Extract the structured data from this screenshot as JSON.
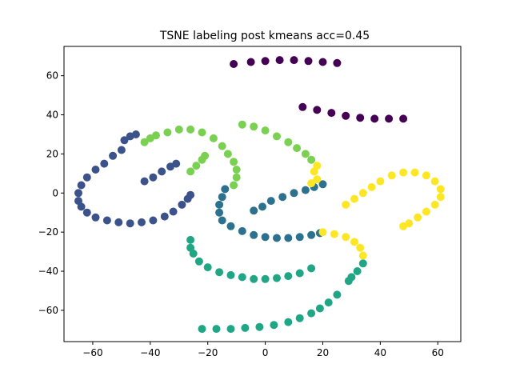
{
  "chart_data": {
    "type": "scatter",
    "title": "TSNE labeling post kmeans acc=0.45",
    "xlabel": "",
    "ylabel": "",
    "xlim": [
      -70,
      68
    ],
    "ylim": [
      -76,
      75
    ],
    "x_ticks": [
      -60,
      -40,
      -20,
      0,
      20,
      40,
      60
    ],
    "y_ticks": [
      -60,
      -40,
      -20,
      0,
      20,
      40,
      60
    ],
    "grid": false,
    "legend": "none",
    "series": [
      {
        "color": "#440154",
        "points": [
          [
            -11,
            66
          ],
          [
            -5,
            67
          ],
          [
            0,
            67.5
          ],
          [
            5,
            68
          ],
          [
            10,
            68
          ],
          [
            15,
            67.5
          ],
          [
            20,
            67
          ],
          [
            25,
            66.5
          ],
          [
            13,
            44
          ],
          [
            18,
            42.5
          ],
          [
            23,
            41
          ],
          [
            28,
            39.5
          ],
          [
            33,
            38.5
          ],
          [
            38,
            38
          ],
          [
            43,
            38
          ],
          [
            48,
            38
          ]
        ]
      },
      {
        "color": "#3b528b",
        "points": [
          [
            -49,
            27
          ],
          [
            -47,
            29
          ],
          [
            -45,
            30
          ],
          [
            -42,
            6
          ],
          [
            -39,
            8
          ],
          [
            -36,
            11
          ],
          [
            -33,
            13.5
          ],
          [
            -31,
            15
          ],
          [
            -50,
            22
          ],
          [
            -53,
            19
          ],
          [
            -56,
            15
          ],
          [
            -59,
            12
          ],
          [
            -62,
            8
          ],
          [
            -64,
            4
          ],
          [
            -65,
            0
          ],
          [
            -65,
            -4
          ],
          [
            -64,
            -7
          ],
          [
            -62,
            -10
          ],
          [
            -59,
            -12.5
          ],
          [
            -55,
            -14
          ],
          [
            -51,
            -15
          ],
          [
            -47,
            -15.5
          ],
          [
            -43,
            -15
          ],
          [
            -39,
            -14
          ],
          [
            -35,
            -12
          ],
          [
            -32,
            -9.5
          ],
          [
            -29,
            -6
          ],
          [
            -27,
            -3
          ],
          [
            -26,
            -1
          ]
        ]
      },
      {
        "color": "#2c728e",
        "points": [
          [
            -4,
            -9
          ],
          [
            -1,
            -7
          ],
          [
            2,
            -4
          ],
          [
            6,
            -2
          ],
          [
            10,
            0
          ],
          [
            14,
            1.5
          ],
          [
            17,
            3
          ],
          [
            20,
            4.5
          ],
          [
            -14,
            2
          ],
          [
            -15,
            -2
          ],
          [
            -16,
            -6
          ],
          [
            -16,
            -10
          ],
          [
            -15,
            -14
          ],
          [
            -12,
            -17
          ],
          [
            -8,
            -19.5
          ],
          [
            -4,
            -21.5
          ],
          [
            0,
            -22.5
          ],
          [
            4,
            -23
          ],
          [
            8,
            -23
          ],
          [
            12,
            -22.5
          ],
          [
            16,
            -21.5
          ],
          [
            19,
            -20.5
          ]
        ]
      },
      {
        "color": "#21a685",
        "points": [
          [
            -26,
            -24
          ],
          [
            -26,
            -28
          ],
          [
            -25,
            -31
          ],
          [
            -23,
            -35
          ],
          [
            -20,
            -38
          ],
          [
            -16,
            -40.5
          ],
          [
            -12,
            -42
          ],
          [
            -8,
            -43
          ],
          [
            -4,
            -44
          ],
          [
            0,
            -44
          ],
          [
            4,
            -43.5
          ],
          [
            8,
            -42.5
          ],
          [
            12,
            -41
          ],
          [
            16,
            -38.5
          ],
          [
            29,
            -45
          ],
          [
            30,
            -43
          ],
          [
            32,
            -40
          ],
          [
            34,
            -36
          ],
          [
            -22,
            -69.5
          ],
          [
            -17,
            -69.5
          ],
          [
            -12,
            -69.5
          ],
          [
            -7,
            -69
          ],
          [
            -2,
            -68.5
          ],
          [
            3,
            -67.5
          ],
          [
            8,
            -66
          ],
          [
            12,
            -64
          ],
          [
            16,
            -61.5
          ],
          [
            19,
            -59
          ],
          [
            22,
            -56
          ],
          [
            25,
            -52
          ]
        ]
      },
      {
        "color": "#7ad151",
        "points": [
          [
            -26,
            11
          ],
          [
            -24,
            14
          ],
          [
            -22,
            17
          ],
          [
            -21,
            19
          ],
          [
            -11,
            4
          ],
          [
            -10,
            8
          ],
          [
            -10,
            12
          ],
          [
            -11,
            16
          ],
          [
            -13,
            20
          ],
          [
            -15,
            24
          ],
          [
            -18,
            28
          ],
          [
            -22,
            31
          ],
          [
            -26,
            32.5
          ],
          [
            -30,
            32.5
          ],
          [
            -34,
            31
          ],
          [
            -38,
            29.5
          ],
          [
            -40,
            28
          ],
          [
            -42,
            26
          ],
          [
            -8,
            35
          ],
          [
            -4,
            34
          ],
          [
            0,
            32
          ],
          [
            4,
            29
          ],
          [
            8,
            26
          ],
          [
            11,
            23
          ],
          [
            14,
            20
          ],
          [
            16,
            17
          ]
        ]
      },
      {
        "color": "#fde725",
        "points": [
          [
            20,
            -20
          ],
          [
            24,
            -21
          ],
          [
            28,
            -22.5
          ],
          [
            31,
            -25
          ],
          [
            33,
            -28
          ],
          [
            34,
            -32
          ],
          [
            17,
            11
          ],
          [
            18,
            14
          ],
          [
            18,
            7
          ],
          [
            16,
            5
          ],
          [
            28,
            -6
          ],
          [
            31,
            -3
          ],
          [
            34,
            0
          ],
          [
            37,
            3
          ],
          [
            40,
            6
          ],
          [
            44,
            9
          ],
          [
            48,
            10.5
          ],
          [
            52,
            10.5
          ],
          [
            56,
            9
          ],
          [
            59,
            6
          ],
          [
            61,
            2
          ],
          [
            61,
            -2
          ],
          [
            59,
            -6
          ],
          [
            56,
            -9.5
          ],
          [
            53,
            -12.5
          ],
          [
            50,
            -15.5
          ],
          [
            48,
            -17
          ]
        ]
      }
    ]
  }
}
